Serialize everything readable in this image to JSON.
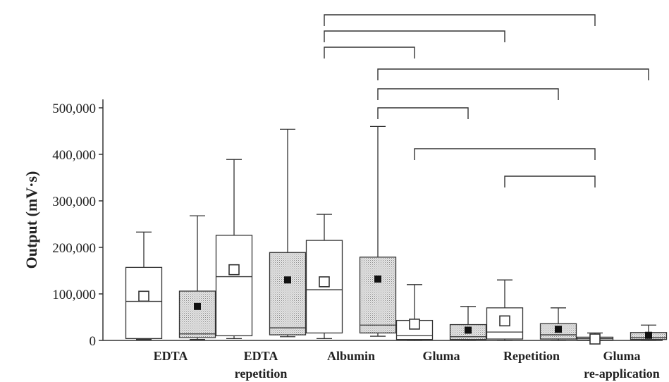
{
  "chart_data": {
    "type": "boxplot",
    "ylabel": "Output (mV·s)",
    "ylim": [
      0,
      500000
    ],
    "yticks": [
      0,
      100000,
      200000,
      300000,
      400000,
      500000
    ],
    "ytick_labels": [
      "0",
      "100,000",
      "200,000",
      "300,000",
      "400,000",
      "500,000"
    ],
    "grid": false,
    "colors": {
      "open": "#ffffff",
      "shaded": "#d9d9d9",
      "stroke": "#333333"
    },
    "groups": [
      {
        "label_lines": [
          "EDTA"
        ],
        "boxes": [
          {
            "fill": "open",
            "min": 2000,
            "q1": 4000,
            "median": 84000,
            "q3": 157000,
            "max": 233000,
            "mean": 95000
          },
          {
            "fill": "shaded",
            "min": 2000,
            "q1": 6000,
            "median": 14000,
            "q3": 106000,
            "max": 268000,
            "mean": 73000
          }
        ]
      },
      {
        "label_lines": [
          "EDTA",
          "repetition"
        ],
        "boxes": [
          {
            "fill": "open",
            "min": 4000,
            "q1": 10000,
            "median": 137000,
            "q3": 226000,
            "max": 389000,
            "mean": 152000
          },
          {
            "fill": "shaded",
            "min": 8000,
            "q1": 12000,
            "median": 27000,
            "q3": 189000,
            "max": 454000,
            "mean": 130000
          }
        ]
      },
      {
        "label_lines": [
          "Albumin"
        ],
        "boxes": [
          {
            "fill": "open",
            "min": 4000,
            "q1": 16000,
            "median": 109000,
            "q3": 215000,
            "max": 271000,
            "mean": 126000
          },
          {
            "fill": "shaded",
            "min": 9000,
            "q1": 16000,
            "median": 33000,
            "q3": 179000,
            "max": 460000,
            "mean": 132000
          }
        ]
      },
      {
        "label_lines": [
          "Gluma"
        ],
        "boxes": [
          {
            "fill": "open",
            "min": 0,
            "q1": 2000,
            "median": 10000,
            "q3": 43000,
            "max": 120000,
            "mean": 35000
          },
          {
            "fill": "shaded",
            "min": 0,
            "q1": 2000,
            "median": 8000,
            "q3": 34000,
            "max": 73000,
            "mean": 22000
          }
        ]
      },
      {
        "label_lines": [
          "Repetition"
        ],
        "boxes": [
          {
            "fill": "open",
            "min": 0,
            "q1": 3000,
            "median": 18000,
            "q3": 70000,
            "max": 130000,
            "mean": 42000
          },
          {
            "fill": "shaded",
            "min": 0,
            "q1": 3000,
            "median": 12000,
            "q3": 36000,
            "max": 70000,
            "mean": 24000
          }
        ]
      },
      {
        "label_lines": [
          "Gluma",
          "re-application"
        ],
        "boxes": [
          {
            "fill": "open",
            "min": 0,
            "q1": 1000,
            "median": 4000,
            "q3": 7000,
            "max": 16000,
            "mean": 3000
          },
          {
            "fill": "shaded",
            "min": 0,
            "q1": 2000,
            "median": 6000,
            "q3": 17000,
            "max": 33000,
            "mean": 11000
          }
        ]
      }
    ],
    "significance_brackets": [
      {
        "from": [
          2,
          0
        ],
        "to": [
          5,
          0
        ]
      },
      {
        "from": [
          2,
          0
        ],
        "to": [
          4,
          0
        ]
      },
      {
        "from": [
          2,
          0
        ],
        "to": [
          3,
          0
        ]
      },
      {
        "from": [
          2,
          1
        ],
        "to": [
          5,
          1
        ]
      },
      {
        "from": [
          2,
          1
        ],
        "to": [
          4,
          1
        ]
      },
      {
        "from": [
          2,
          1
        ],
        "to": [
          3,
          1
        ]
      },
      {
        "from": [
          3,
          0
        ],
        "to": [
          5,
          0
        ]
      },
      {
        "from": [
          4,
          0
        ],
        "to": [
          5,
          0
        ]
      }
    ]
  }
}
